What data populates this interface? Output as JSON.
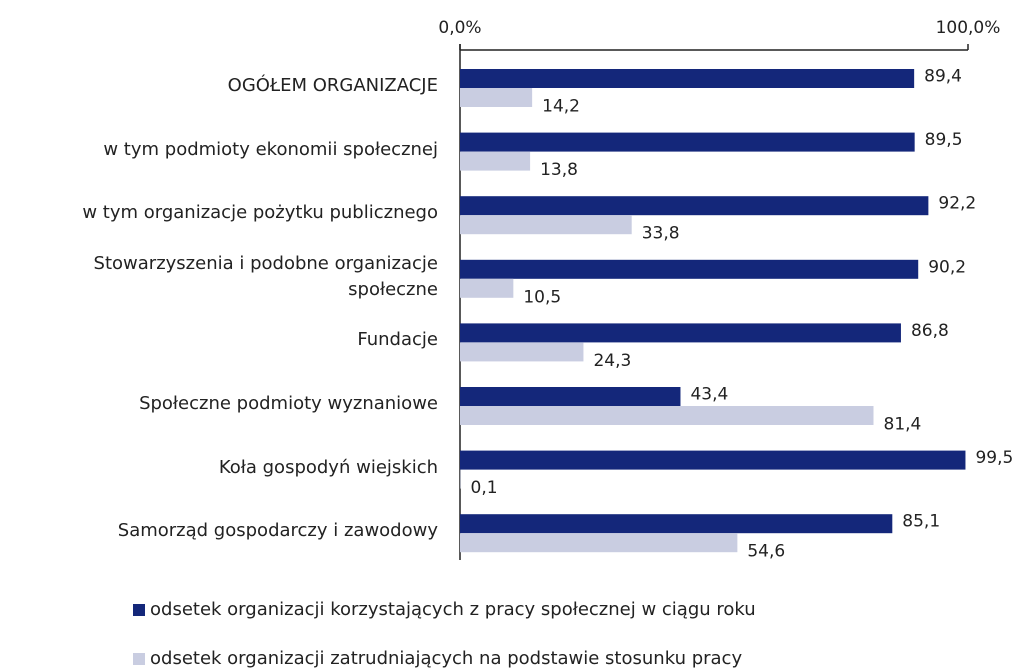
{
  "chart_data": {
    "type": "bar",
    "orientation": "horizontal",
    "categories": [
      "OGÓŁEM ORGANIZACJE",
      "w tym podmioty ekonomii społecznej",
      "w tym organizacje pożytku publicznego",
      "Stowarzyszenia i podobne organizacje społeczne",
      "Fundacje",
      "Społeczne podmioty wyznaniowe",
      "Koła gospodyń wiejskich",
      "Samorząd gospodarczy i zawodowy"
    ],
    "series": [
      {
        "name": "odsetek organizacji korzystających z pracy społecznej w ciągu roku",
        "color": "#14277a",
        "values": [
          89.4,
          89.5,
          92.2,
          90.2,
          86.8,
          43.4,
          99.5,
          85.1
        ],
        "value_labels": [
          "89,4",
          "89,5",
          "92,2",
          "90,2",
          "86,8",
          "43,4",
          "99,5",
          "85,1"
        ]
      },
      {
        "name": "odsetek organizacji zatrudniających na podstawie stosunku pracy",
        "color": "#c9cde1",
        "values": [
          14.2,
          13.8,
          33.8,
          10.5,
          24.3,
          81.4,
          0.1,
          54.6
        ],
        "value_labels": [
          "14,2",
          "13,8",
          "33,8",
          "10,5",
          "24,3",
          "81,4",
          "0,1",
          "54,6"
        ]
      }
    ],
    "xlim": [
      0,
      100
    ],
    "xticks": [
      {
        "value": 0,
        "label": "0,0%"
      },
      {
        "value": 100,
        "label": "100,0%"
      }
    ],
    "legend": "bottom"
  }
}
